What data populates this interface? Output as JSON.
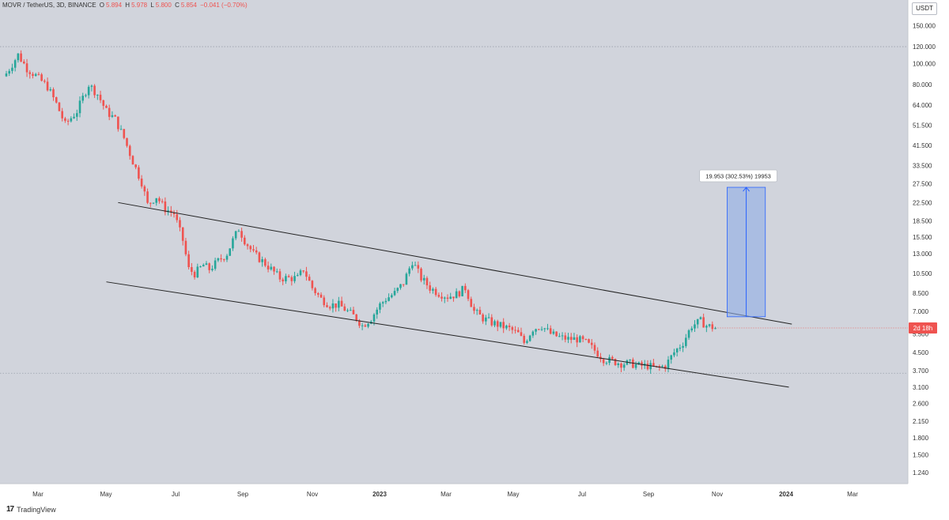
{
  "header": {
    "symbol": "MOVR / TetherUS, 3D, BINANCE",
    "o_label": "O",
    "o": "5.894",
    "h_label": "H",
    "h": "5.978",
    "l_label": "L",
    "l": "5.800",
    "c_label": "C",
    "c": "5.854",
    "change": "−0.041 (−0.70%)"
  },
  "currency_badge": "USDT",
  "countdown_badge": "2d 18h",
  "measure_label": "19.953 (302.53%) 19953",
  "footer": {
    "logo": "17",
    "brand": "TradingView"
  },
  "colors": {
    "up": "#26a69a",
    "down": "#ef5350",
    "background": "#d1d4dc",
    "measure_fill": "#90aee6",
    "measure_line": "#2962ff"
  },
  "chart_data": {
    "type": "candlestick",
    "title": "MOVR / TetherUS, 3D, BINANCE",
    "y_scale": "log",
    "ylim": [
      1.1,
      170
    ],
    "y_ticks": [
      "150.000",
      "120.000",
      "100.000",
      "80.000",
      "64.000",
      "51.500",
      "41.500",
      "33.500",
      "27.500",
      "22.500",
      "18.500",
      "15.500",
      "13.000",
      "10.500",
      "8.500",
      "7.000",
      "5.500",
      "4.500",
      "3.700",
      "3.100",
      "2.600",
      "2.150",
      "1.800",
      "1.500",
      "1.240"
    ],
    "x_ticks": [
      "Mar",
      "May",
      "Jul",
      "Sep",
      "Nov",
      "2023",
      "Mar",
      "May",
      "Jul",
      "Sep",
      "Nov",
      "2024",
      "Mar"
    ],
    "x_ticks_bold": [
      "2023",
      "2024"
    ],
    "grid": true,
    "last_price": 5.854,
    "horizontal_levels": [
      120,
      3.6
    ],
    "close_path": [
      [
        0,
        90
      ],
      [
        4,
        110
      ],
      [
        7,
        95
      ],
      [
        10,
        88
      ],
      [
        14,
        78
      ],
      [
        17,
        65
      ],
      [
        20,
        52
      ],
      [
        24,
        60
      ],
      [
        28,
        80
      ],
      [
        31,
        72
      ],
      [
        34,
        60
      ],
      [
        37,
        55
      ],
      [
        40,
        45
      ],
      [
        43,
        35
      ],
      [
        46,
        28
      ],
      [
        48,
        22
      ],
      [
        51,
        24
      ],
      [
        54,
        21
      ],
      [
        57,
        20
      ],
      [
        60,
        15
      ],
      [
        62,
        11
      ],
      [
        64,
        10.5
      ],
      [
        67,
        11.5
      ],
      [
        69,
        11
      ],
      [
        72,
        12
      ],
      [
        75,
        13
      ],
      [
        77,
        15
      ],
      [
        79,
        17
      ],
      [
        81,
        15
      ],
      [
        84,
        13
      ],
      [
        87,
        12
      ],
      [
        90,
        11
      ],
      [
        93,
        10
      ],
      [
        96,
        10
      ],
      [
        99,
        10
      ],
      [
        101,
        11
      ],
      [
        104,
        9
      ],
      [
        107,
        8
      ],
      [
        110,
        7.5
      ],
      [
        113,
        7.5
      ],
      [
        116,
        7
      ],
      [
        119,
        6.5
      ],
      [
        121,
        6
      ],
      [
        124,
        6.5
      ],
      [
        127,
        7.5
      ],
      [
        129,
        8
      ],
      [
        132,
        8.5
      ],
      [
        135,
        9.5
      ],
      [
        138,
        12
      ],
      [
        141,
        10
      ],
      [
        144,
        9
      ],
      [
        147,
        8.5
      ],
      [
        150,
        8.2
      ],
      [
        153,
        8.4
      ],
      [
        156,
        9
      ],
      [
        159,
        7
      ],
      [
        162,
        6.5
      ],
      [
        165,
        6.2
      ],
      [
        168,
        6
      ],
      [
        171,
        5.8
      ],
      [
        174,
        5.5
      ],
      [
        176,
        5
      ],
      [
        179,
        5.8
      ],
      [
        182,
        6
      ],
      [
        185,
        5.5
      ],
      [
        188,
        5.3
      ],
      [
        191,
        5.2
      ],
      [
        194,
        5.2
      ],
      [
        197,
        5
      ],
      [
        200,
        4.6
      ],
      [
        203,
        4.2
      ],
      [
        206,
        4.1
      ],
      [
        209,
        4
      ],
      [
        212,
        4
      ],
      [
        215,
        3.9
      ],
      [
        218,
        3.9
      ],
      [
        221,
        3.8
      ],
      [
        224,
        3.9
      ],
      [
        227,
        4.5
      ],
      [
        230,
        5
      ],
      [
        233,
        6
      ],
      [
        236,
        6.3
      ],
      [
        238,
        6
      ],
      [
        240,
        5.9
      ],
      [
        241,
        5.854
      ]
    ],
    "upper_channel": {
      "start": {
        "bar": 38,
        "price": 22.5
      },
      "end": {
        "bar": 267,
        "price": 6.1
      }
    },
    "lower_channel": {
      "start": {
        "bar": 34,
        "price": 9.6
      },
      "end": {
        "bar": 266,
        "price": 3.1
      }
    },
    "price_range": {
      "from_price": 6.6,
      "to_price": 26.5,
      "change": 19.953,
      "change_pct": 302.53,
      "from_bar": 245,
      "to_bar": 258
    }
  }
}
